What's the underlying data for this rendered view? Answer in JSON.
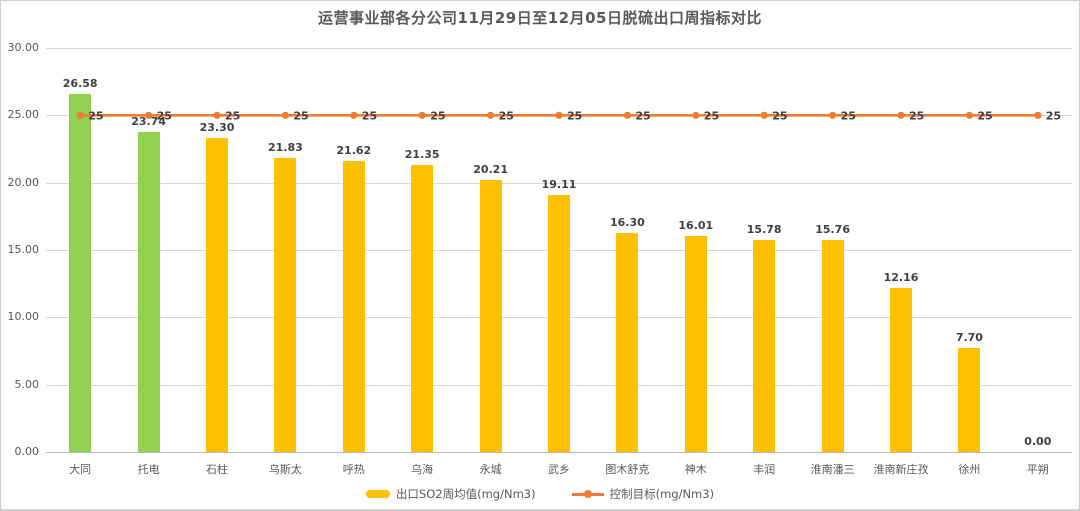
{
  "chart_data": {
    "type": "bar",
    "title": "运营事业部各分公司11月29日至12月05日脱硫出口周指标对比",
    "categories": [
      "大同",
      "托电",
      "石柱",
      "乌斯太",
      "呼热",
      "乌海",
      "永城",
      "武乡",
      "图木舒克",
      "神木",
      "丰润",
      "淮南潘三",
      "淮南新庄孜",
      "徐州",
      "平朔"
    ],
    "series": [
      {
        "name": "出口SO2周均值(mg/Nm3)",
        "type": "bar",
        "values": [
          26.58,
          23.74,
          23.3,
          21.83,
          21.62,
          21.35,
          20.21,
          19.11,
          16.3,
          16.01,
          15.78,
          15.76,
          12.16,
          7.7,
          0.0
        ],
        "point_colors": [
          "#92D050",
          "#92D050",
          "#FFC000",
          "#FFC000",
          "#FFC000",
          "#FFC000",
          "#FFC000",
          "#FFC000",
          "#FFC000",
          "#FFC000",
          "#FFC000",
          "#FFC000",
          "#FFC000",
          "#FFC000",
          "#FFC000"
        ],
        "default_color": "#FFC000",
        "highlight_color": "#92D050"
      },
      {
        "name": "控制目标(mg/Nm3)",
        "type": "line",
        "values": [
          25,
          25,
          25,
          25,
          25,
          25,
          25,
          25,
          25,
          25,
          25,
          25,
          25,
          25,
          25
        ],
        "color": "#ED7D31"
      }
    ],
    "ylim": [
      0,
      30
    ],
    "y_ticks": [
      30,
      25,
      20,
      15,
      10,
      5,
      0
    ],
    "y_tick_labels": [
      "30.00",
      "25.00",
      "20.00",
      "15.00",
      "10.00",
      "5.00",
      "0.00"
    ],
    "grid": true,
    "legend_position": "bottom",
    "colors": {
      "grid": "#D9D9D9",
      "axis_text": "#595959",
      "data_label": "#404040",
      "title_text": "#595959",
      "background": "#FFFFFF",
      "border": "#D0D0D0"
    }
  }
}
